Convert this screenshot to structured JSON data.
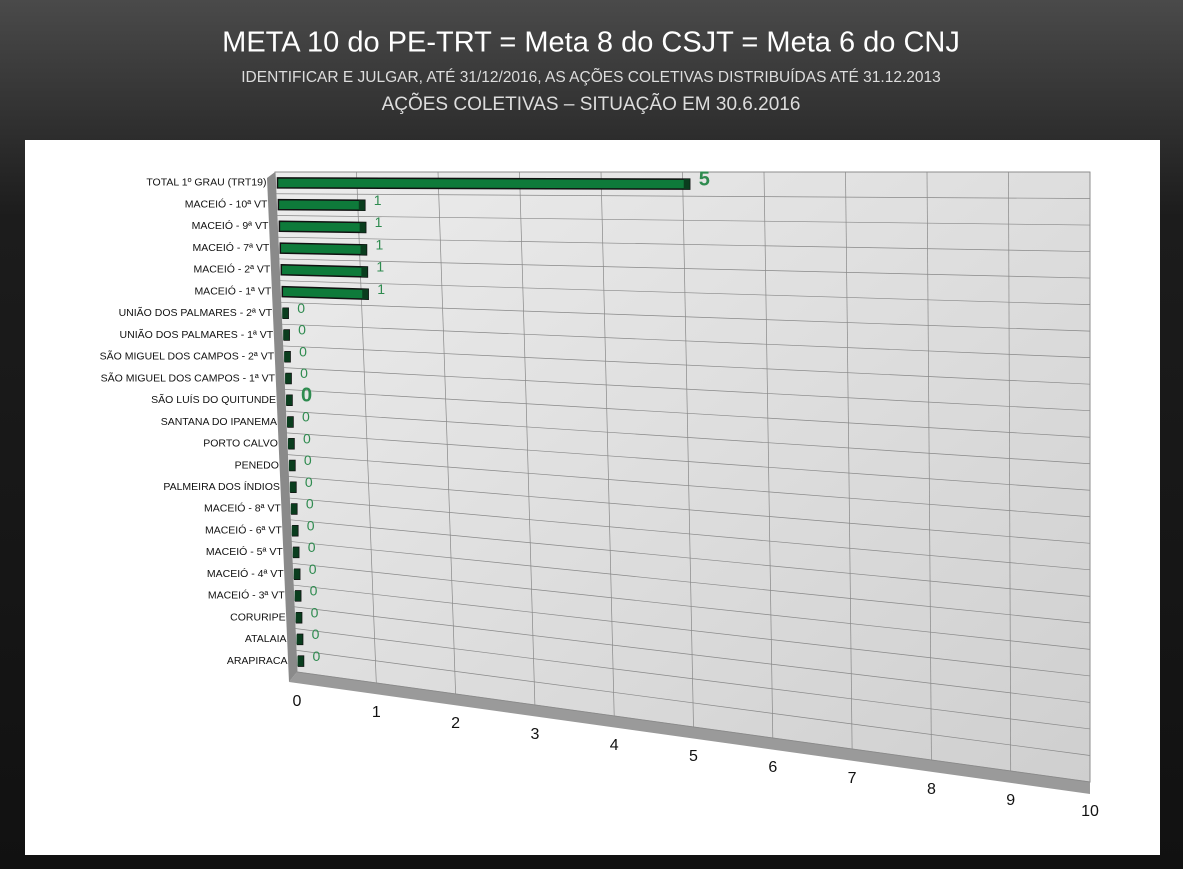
{
  "chart_data": {
    "type": "bar",
    "orientation": "horizontal",
    "title": "META 10 do PE-TRT = Meta 8 do CSJT = Meta 6 do CNJ",
    "subtitle": "IDENTIFICAR E JULGAR, ATÉ 31/12/2016, AS AÇÕES COLETIVAS DISTRIBUÍDAS ATÉ 31.12.2013",
    "subtitle2": "AÇÕES COLETIVAS – SITUAÇÃO EM 30.6.2016",
    "categories": [
      "TOTAL 1º GRAU (TRT19)",
      "MACEIÓ - 10ª VT",
      "MACEIÓ - 9ª VT",
      "MACEIÓ - 7ª VT",
      "MACEIÓ - 2ª VT",
      "MACEIÓ - 1ª VT",
      "UNIÃO DOS PALMARES - 2ª VT",
      "UNIÃO DOS PALMARES - 1ª VT",
      "SÃO MIGUEL DOS CAMPOS - 2ª VT",
      "SÃO MIGUEL DOS CAMPOS - 1ª VT",
      "SÃO LUÍS DO QUITUNDE",
      "SANTANA DO IPANEMA",
      "PORTO CALVO",
      "PENEDO",
      "PALMEIRA DOS ÍNDIOS",
      "MACEIÓ - 8ª VT",
      "MACEIÓ - 6ª VT",
      "MACEIÓ - 5ª VT",
      "MACEIÓ - 4ª VT",
      "MACEIÓ - 3ª VT",
      "CORURIPE",
      "ATALAIA",
      "ARAPIRACA"
    ],
    "values": [
      5,
      1,
      1,
      1,
      1,
      1,
      0,
      0,
      0,
      0,
      0,
      0,
      0,
      0,
      0,
      0,
      0,
      0,
      0,
      0,
      0,
      0,
      0
    ],
    "color": "#0e7a3a",
    "label_color": "#2e8b4f",
    "xlim": [
      0,
      10
    ],
    "xticks": [
      0,
      1,
      2,
      3,
      4,
      5,
      6,
      7,
      8,
      9,
      10
    ],
    "grid": true
  }
}
